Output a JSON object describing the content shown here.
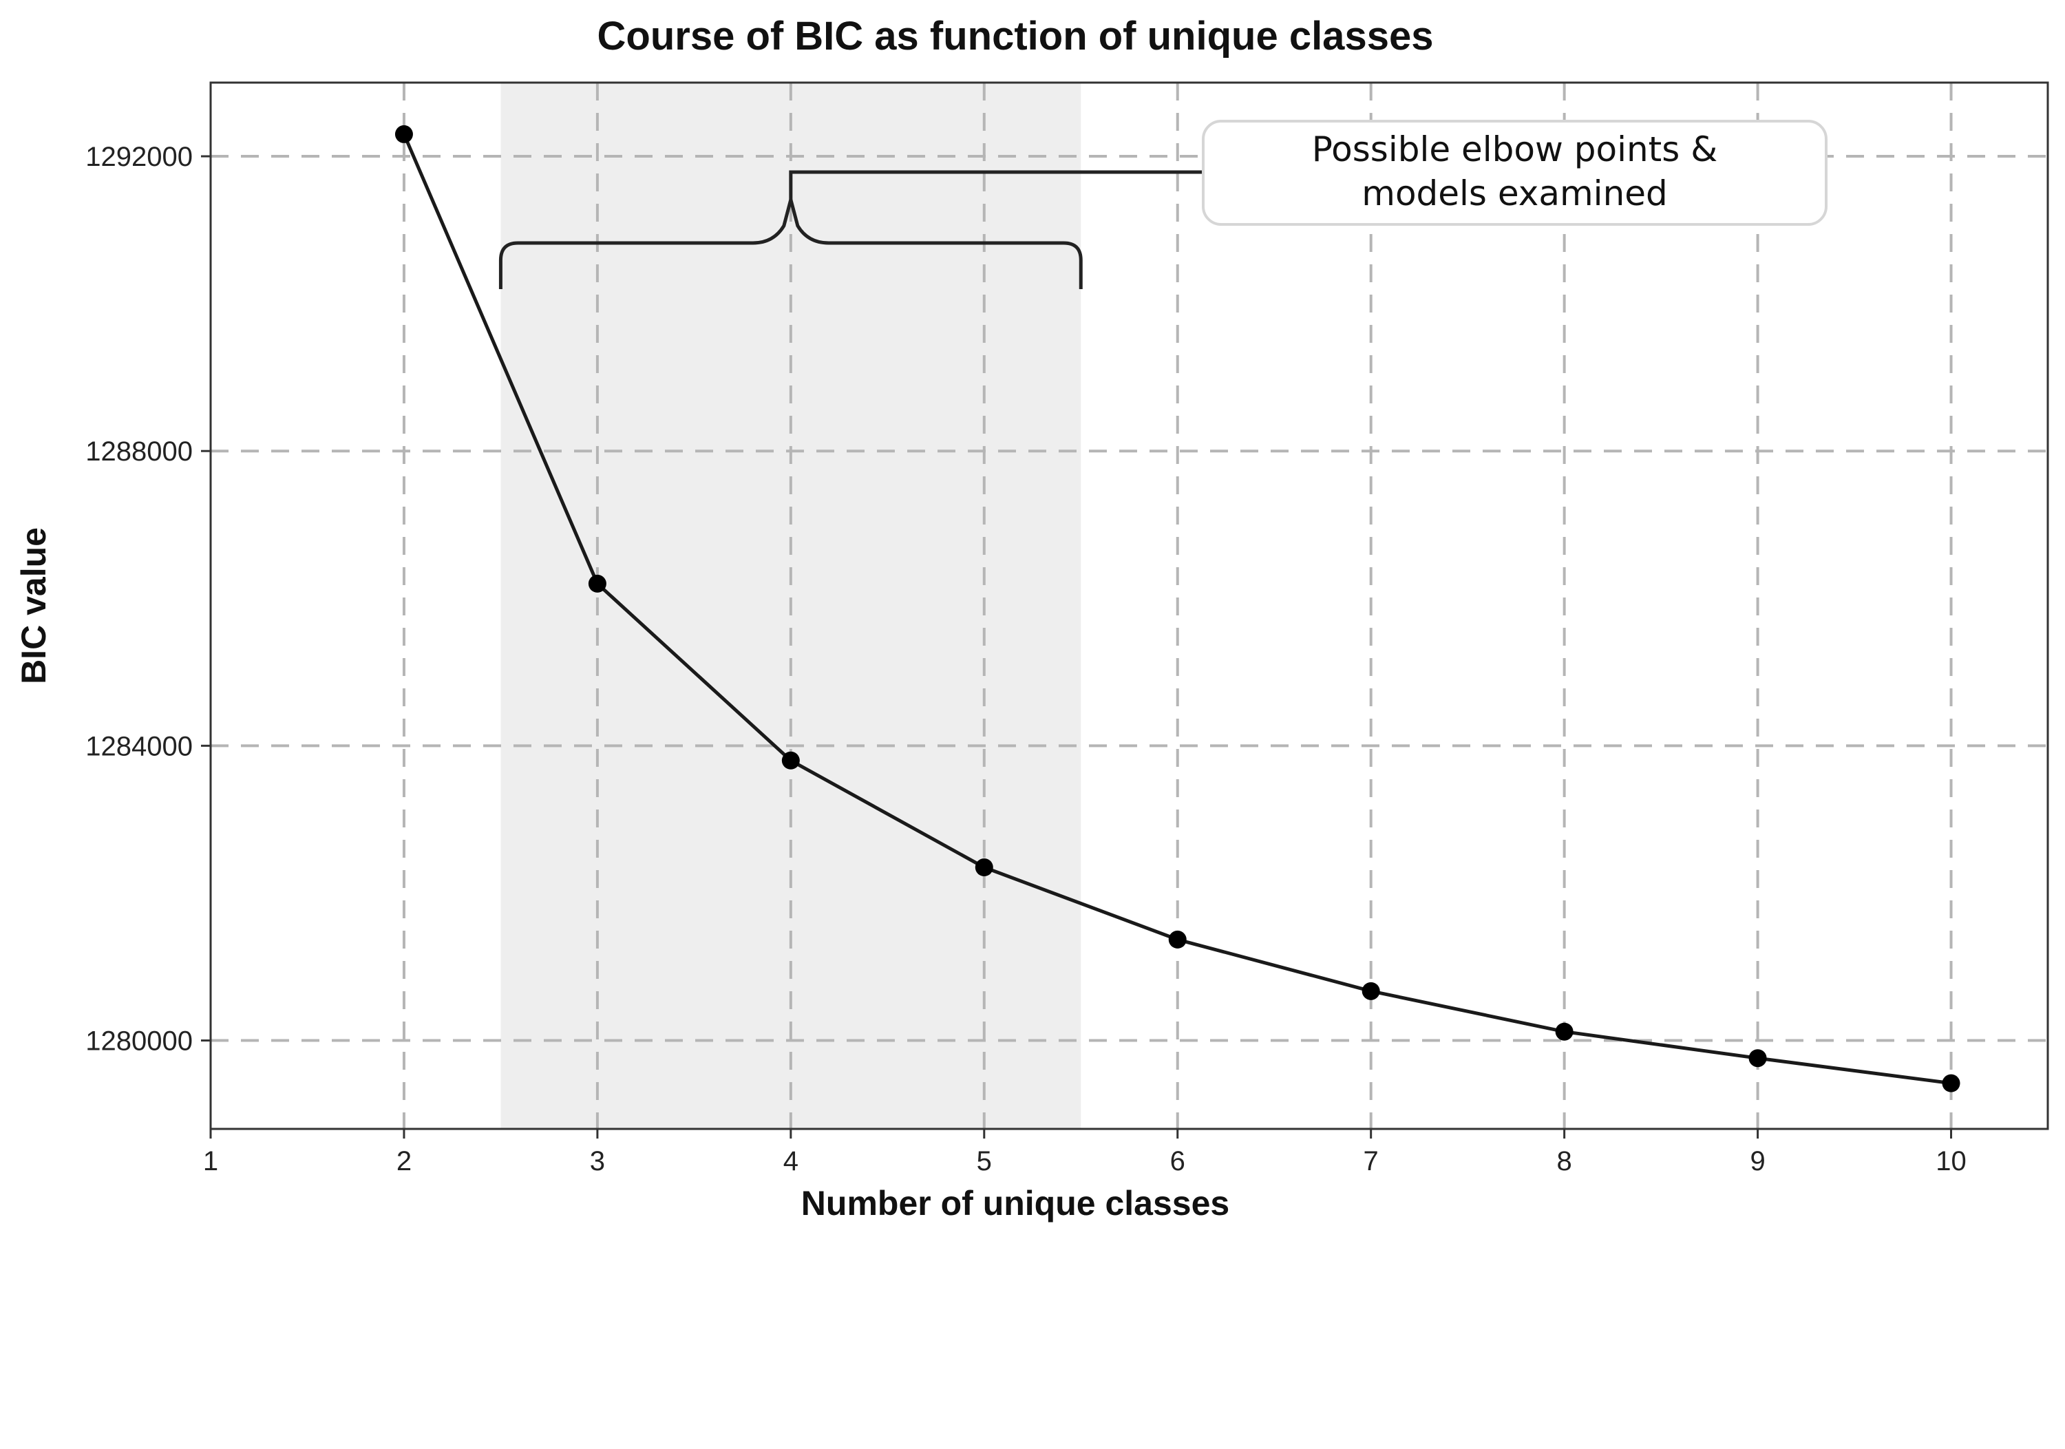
{
  "chart_data": {
    "type": "line",
    "title": "Course of BIC as function of unique classes",
    "xlabel": "Number of unique classes",
    "ylabel": "BIC value",
    "x": [
      2,
      3,
      4,
      5,
      6,
      7,
      8,
      9,
      10
    ],
    "series": [
      {
        "values": [
          1292300,
          1286200,
          1283800,
          1282350,
          1281370,
          1280670,
          1280120,
          1279760,
          1279420
        ]
      }
    ],
    "xlim": [
      1,
      10.5
    ],
    "ylim": [
      1278800,
      1293000
    ],
    "xticks": [
      1,
      2,
      3,
      4,
      5,
      6,
      7,
      8,
      9,
      10
    ],
    "yticks": [
      1280000,
      1284000,
      1288000,
      1292000
    ],
    "grid": true,
    "grid_style": "dashed",
    "line_color": "#1a1a1a",
    "marker_color": "#000000",
    "shaded_region": {
      "x_range": [
        2.5,
        5.5
      ],
      "color": "#eeeeee"
    },
    "annotation": {
      "lines": [
        "Possible elbow points &",
        "models examined"
      ],
      "bracket_x_range": [
        2.5,
        5.5
      ],
      "bracket_center_x": 4
    }
  }
}
